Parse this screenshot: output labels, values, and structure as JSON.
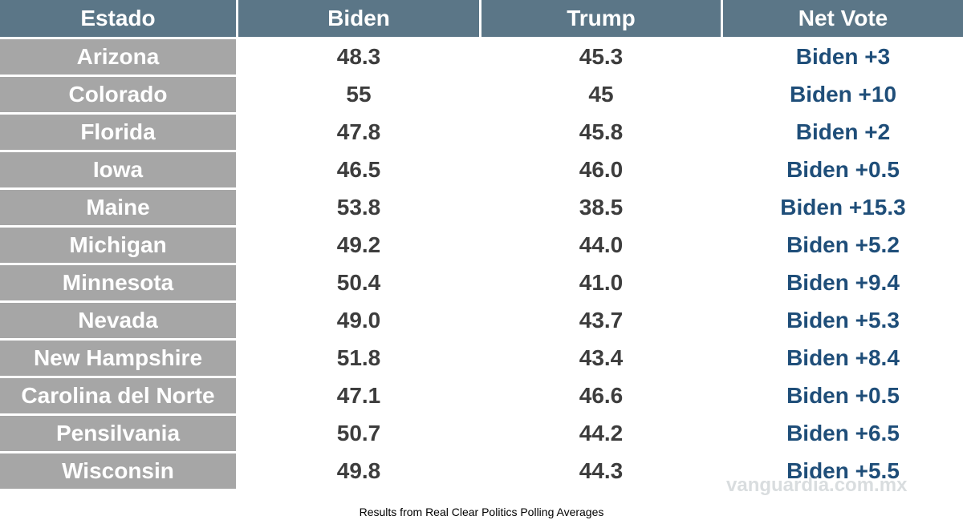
{
  "chart_data": {
    "type": "table",
    "title": "",
    "columns": [
      "Estado",
      "Biden",
      "Trump",
      "Net Vote"
    ],
    "rows": [
      [
        "Arizona",
        "48.3",
        "45.3",
        "Biden +3"
      ],
      [
        "Colorado",
        "55",
        "45",
        "Biden +10"
      ],
      [
        "Florida",
        "47.8",
        "45.8",
        "Biden +2"
      ],
      [
        "Iowa",
        "46.5",
        "46.0",
        "Biden +0.5"
      ],
      [
        "Maine",
        "53.8",
        "38.5",
        "Biden +15.3"
      ],
      [
        "Michigan",
        "49.2",
        "44.0",
        "Biden +5.2"
      ],
      [
        "Minnesota",
        "50.4",
        "41.0",
        "Biden +9.4"
      ],
      [
        "Nevada",
        "49.0",
        "43.7",
        "Biden +5.3"
      ],
      [
        "New Hampshire",
        "51.8",
        "43.4",
        "Biden +8.4"
      ],
      [
        "Carolina del Norte",
        "47.1",
        "46.6",
        "Biden +0.5"
      ],
      [
        "Pensilvania",
        "50.7",
        "44.2",
        "Biden +6.5"
      ],
      [
        "Wisconsin",
        "49.8",
        "44.3",
        "Biden +5.5"
      ]
    ],
    "caption": "Results from Real Clear Politics Polling Averages"
  },
  "watermark": "vanguardia.com.mx",
  "colors": {
    "header_bg": "#5b7687",
    "state_bg": "#a6a6a6",
    "net_vote_text": "#1f4e79",
    "data_text": "#3d3d3d"
  }
}
